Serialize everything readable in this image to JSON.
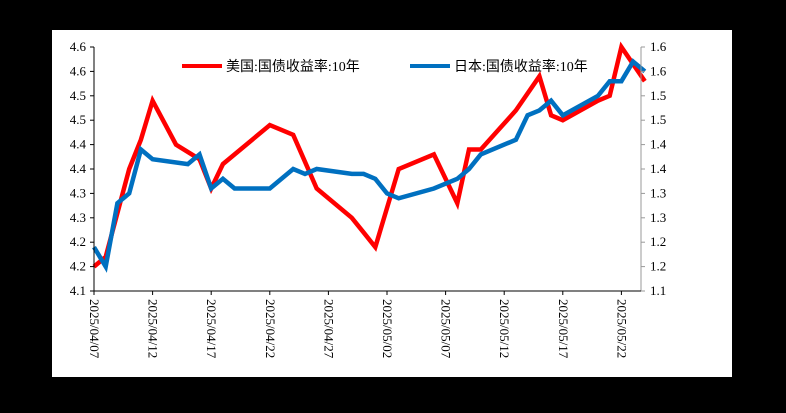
{
  "chart_data": {
    "type": "line",
    "title": "",
    "xlabel": "",
    "ylabel_left": "",
    "ylabel_right": "",
    "legend_position": "top",
    "grid": false,
    "x_tick_labels": [
      "2025/04/07",
      "2025/04/12",
      "2025/04/17",
      "2025/04/22",
      "2025/04/27",
      "2025/05/02",
      "2025/05/07",
      "2025/05/12",
      "2025/05/17",
      "2025/05/22"
    ],
    "y_left_tick_labels": [
      "4.1",
      "4.2",
      "4.2",
      "4.3",
      "4.3",
      "4.4",
      "4.4",
      "4.5",
      "4.5",
      "4.6",
      "4.6"
    ],
    "y_right_tick_labels": [
      "1.1",
      "1.2",
      "1.2",
      "1.3",
      "1.3",
      "1.4",
      "1.4",
      "1.5",
      "1.5",
      "1.6",
      "1.6"
    ],
    "y_left_range": [
      4.1,
      4.6
    ],
    "y_right_range": [
      1.1,
      1.6
    ],
    "x": [
      "2025/04/07",
      "2025/04/08",
      "2025/04/09",
      "2025/04/10",
      "2025/04/11",
      "2025/04/14",
      "2025/04/15",
      "2025/04/16",
      "2025/04/17",
      "2025/04/21",
      "2025/04/22",
      "2025/04/23",
      "2025/04/24",
      "2025/04/25",
      "2025/04/28",
      "2025/04/29",
      "2025/04/30",
      "2025/05/01",
      "2025/05/02",
      "2025/05/05",
      "2025/05/06",
      "2025/05/07",
      "2025/05/08",
      "2025/05/09",
      "2025/05/12",
      "2025/05/13",
      "2025/05/14",
      "2025/05/15",
      "2025/05/16",
      "2025/05/19",
      "2025/05/20",
      "2025/05/21",
      "2025/05/22",
      "2025/05/23"
    ],
    "series": [
      {
        "name": "美国:国债收益率:10年",
        "axis": "left",
        "color": "#FF0000",
        "points": [
          [
            "2025/04/07",
            4.15
          ],
          [
            "2025/04/08",
            4.17
          ],
          [
            "2025/04/10",
            4.35
          ],
          [
            "2025/04/11",
            4.41
          ],
          [
            "2025/04/12",
            4.49
          ],
          [
            "2025/04/14",
            4.4
          ],
          [
            "2025/04/16",
            4.37
          ],
          [
            "2025/04/17",
            4.31
          ],
          [
            "2025/04/18",
            4.36
          ],
          [
            "2025/04/22",
            4.44
          ],
          [
            "2025/04/24",
            4.42
          ],
          [
            "2025/04/26",
            4.31
          ],
          [
            "2025/04/29",
            4.25
          ],
          [
            "2025/04/30",
            4.22
          ],
          [
            "2025/05/01",
            4.19
          ],
          [
            "2025/05/03",
            4.35
          ],
          [
            "2025/05/06",
            4.38
          ],
          [
            "2025/05/08",
            4.28
          ],
          [
            "2025/05/09",
            4.39
          ],
          [
            "2025/05/10",
            4.39
          ],
          [
            "2025/05/13",
            4.47
          ],
          [
            "2025/05/15",
            4.54
          ],
          [
            "2025/05/16",
            4.46
          ],
          [
            "2025/05/17",
            4.45
          ],
          [
            "2025/05/20",
            4.49
          ],
          [
            "2025/05/21",
            4.5
          ],
          [
            "2025/05/22",
            4.6
          ],
          [
            "2025/05/24",
            4.53
          ]
        ]
      },
      {
        "name": "日本:国债收益率:10年",
        "axis": "right",
        "color": "#0070C0",
        "points": [
          [
            "2025/04/07",
            1.19
          ],
          [
            "2025/04/08",
            1.15
          ],
          [
            "2025/04/09",
            1.28
          ],
          [
            "2025/04/10",
            1.3
          ],
          [
            "2025/04/11",
            1.39
          ],
          [
            "2025/04/12",
            1.37
          ],
          [
            "2025/04/15",
            1.36
          ],
          [
            "2025/04/16",
            1.38
          ],
          [
            "2025/04/17",
            1.31
          ],
          [
            "2025/04/18",
            1.33
          ],
          [
            "2025/04/19",
            1.31
          ],
          [
            "2025/04/22",
            1.31
          ],
          [
            "2025/04/24",
            1.35
          ],
          [
            "2025/04/25",
            1.34
          ],
          [
            "2025/04/26",
            1.35
          ],
          [
            "2025/04/29",
            1.34
          ],
          [
            "2025/04/30",
            1.34
          ],
          [
            "2025/05/01",
            1.33
          ],
          [
            "2025/05/02",
            1.3
          ],
          [
            "2025/05/03",
            1.29
          ],
          [
            "2025/05/06",
            1.31
          ],
          [
            "2025/05/08",
            1.33
          ],
          [
            "2025/05/09",
            1.35
          ],
          [
            "2025/05/10",
            1.38
          ],
          [
            "2025/05/13",
            1.41
          ],
          [
            "2025/05/14",
            1.46
          ],
          [
            "2025/05/15",
            1.47
          ],
          [
            "2025/05/16",
            1.49
          ],
          [
            "2025/05/17",
            1.46
          ],
          [
            "2025/05/20",
            1.5
          ],
          [
            "2025/05/21",
            1.53
          ],
          [
            "2025/05/22",
            1.53
          ],
          [
            "2025/05/23",
            1.57
          ],
          [
            "2025/05/24",
            1.55
          ]
        ]
      }
    ]
  },
  "legend": {
    "us_label": "美国:国债收益率:10年",
    "jp_label": "日本:国债收益率:10年"
  }
}
